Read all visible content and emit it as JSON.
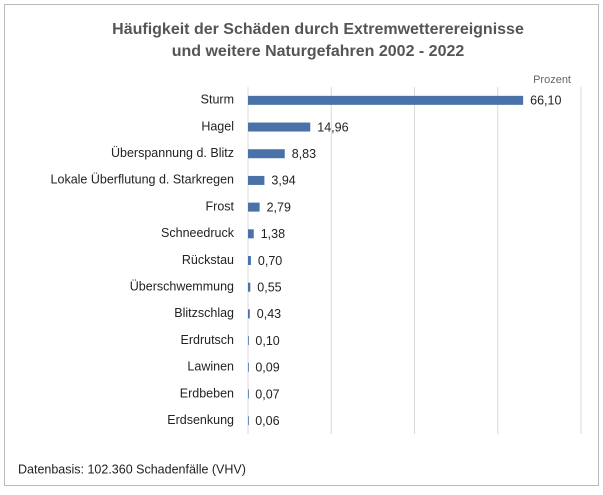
{
  "chart_data": {
    "type": "barh",
    "title": "Häufigkeit der Schäden durch Extremwetterereignisse",
    "subtitle": "und weitere Naturgefahren 2002 - 2022",
    "x_label": "Prozent",
    "categories": [
      "Sturm",
      "Hagel",
      "Überspannung d. Blitz",
      "Lokale Überflutung d. Starkregen",
      "Frost",
      "Schneedruck",
      "Rückstau",
      "Überschwemmung",
      "Blitzschlag",
      "Erdrutsch",
      "Lawinen",
      "Erdbeben",
      "Erdsenkung"
    ],
    "values": [
      66.1,
      14.96,
      8.83,
      3.94,
      2.79,
      1.38,
      0.7,
      0.55,
      0.43,
      0.1,
      0.09,
      0.07,
      0.06
    ],
    "value_labels": [
      "66,10",
      "14,96",
      "8,83",
      "3,94",
      "2,79",
      "1,38",
      "0,70",
      "0,55",
      "0,43",
      "0,10",
      "0,09",
      "0,07",
      "0,06"
    ],
    "color": "#4a72a8",
    "xlim": [
      0,
      80
    ],
    "xticks": [
      0,
      20,
      40,
      60,
      80
    ],
    "grid": true,
    "footnote": "Datenbasis: 102.360 Schadenfälle (VHV)"
  }
}
